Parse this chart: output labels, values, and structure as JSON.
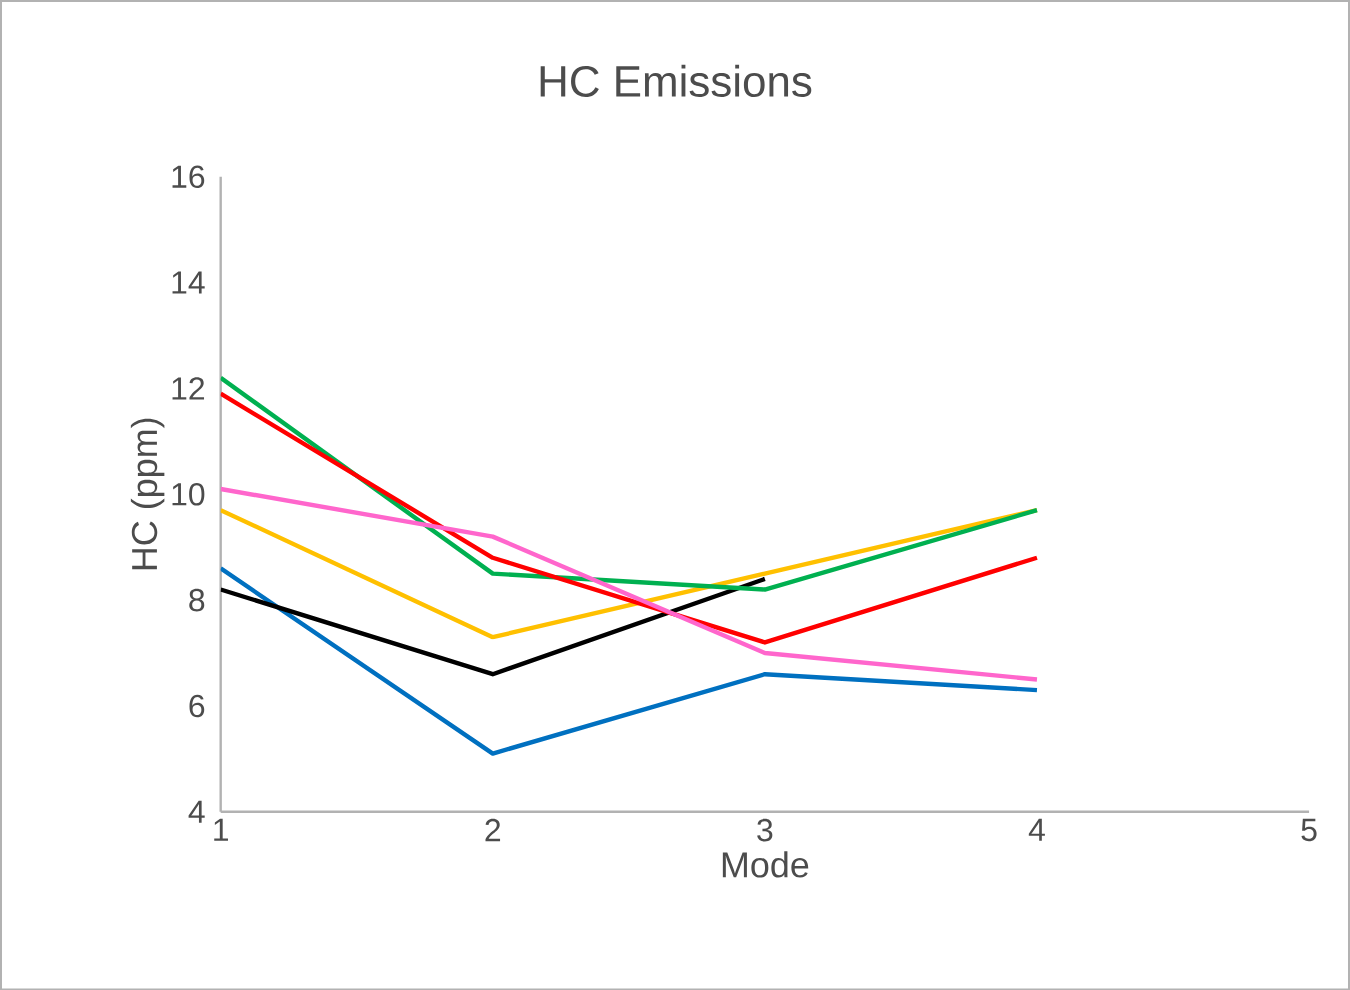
{
  "chart_data": {
    "type": "line",
    "title": "HC Emissions",
    "xlabel": "Mode",
    "ylabel": "HC (ppm)",
    "x": [
      1,
      2,
      3,
      4
    ],
    "series": [
      {
        "color": "#0070c0",
        "values": [
          8.6,
          5.1,
          6.6,
          6.3
        ]
      },
      {
        "color": "#000000",
        "values": [
          8.2,
          6.6,
          8.4,
          null
        ]
      },
      {
        "color": "#ffc000",
        "values": [
          9.7,
          7.3,
          8.5,
          9.7
        ]
      },
      {
        "color": "#00b050",
        "values": [
          12.2,
          8.5,
          8.2,
          9.7
        ]
      },
      {
        "color": "#ff0000",
        "values": [
          11.9,
          8.8,
          7.2,
          8.8
        ]
      },
      {
        "color": "#ff66cc",
        "values": [
          10.1,
          9.2,
          7.0,
          6.5
        ]
      }
    ],
    "xlim": [
      1,
      5
    ],
    "ylim": [
      4,
      16
    ],
    "xticks": [
      1,
      2,
      3,
      4,
      5
    ],
    "yticks": [
      4,
      6,
      8,
      10,
      12,
      14,
      16
    ],
    "grid": false,
    "marker": "none",
    "line_style": "solid"
  }
}
